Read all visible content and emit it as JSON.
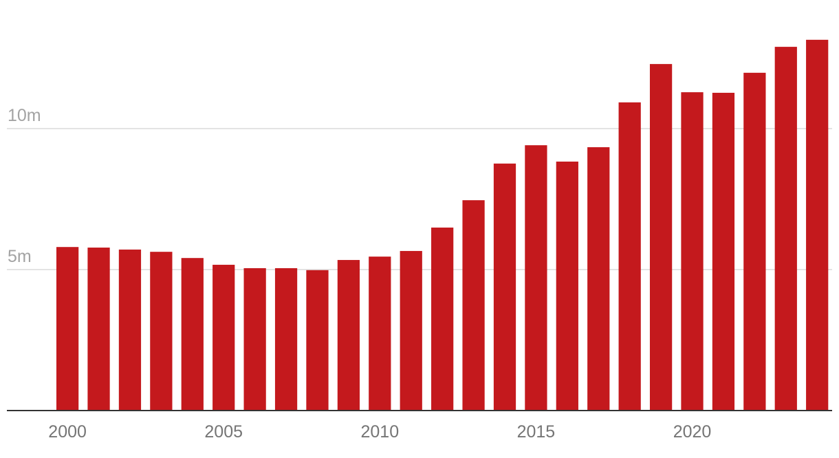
{
  "chart_data": {
    "type": "bar",
    "x": [
      2000,
      2001,
      2002,
      2003,
      2004,
      2005,
      2006,
      2007,
      2008,
      2009,
      2010,
      2011,
      2012,
      2013,
      2014,
      2015,
      2016,
      2017,
      2018,
      2019,
      2020,
      2021,
      2022,
      2023,
      2024
    ],
    "values": [
      5.8,
      5.78,
      5.71,
      5.63,
      5.41,
      5.17,
      5.05,
      5.05,
      4.98,
      5.34,
      5.46,
      5.66,
      6.49,
      7.46,
      8.76,
      9.41,
      8.83,
      9.34,
      10.93,
      12.29,
      11.29,
      11.27,
      11.98,
      12.9,
      13.15
    ],
    "color": "#c4191d",
    "xlim": [
      1998.06,
      2024.48
    ],
    "xticks": [
      2000,
      2005,
      2010,
      2015,
      2020
    ],
    "ylim": [
      0,
      14
    ],
    "yticks": [
      {
        "value": 5,
        "label": "5m"
      },
      {
        "value": 10,
        "label": "10m"
      }
    ],
    "grid": true
  }
}
